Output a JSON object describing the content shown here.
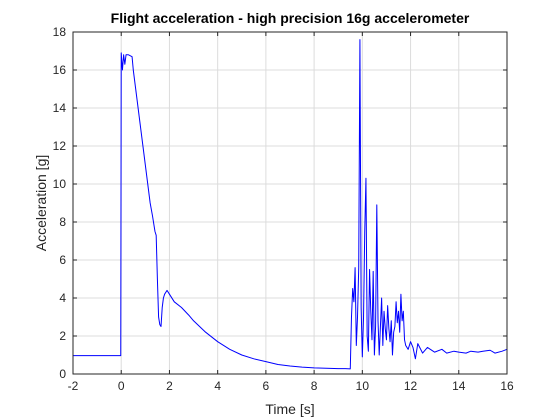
{
  "chart_data": {
    "type": "line",
    "title": "Flight acceleration - high precision 16g accelerometer",
    "xlabel": "Time [s]",
    "ylabel": "Acceleration [g]",
    "xlim": [
      -2,
      16
    ],
    "ylim": [
      0,
      18
    ],
    "xticks": [
      "-2",
      "0",
      "2",
      "4",
      "6",
      "8",
      "10",
      "12",
      "14",
      "16"
    ],
    "yticks": [
      "0",
      "2",
      "4",
      "6",
      "8",
      "10",
      "12",
      "14",
      "16",
      "18"
    ],
    "grid": true,
    "line_color": "#0000ff",
    "series": [
      {
        "x": [
          -2,
          -1,
          -0.5,
          -0.02,
          0,
          0.05,
          0.1,
          0.15,
          0.2,
          0.3,
          0.45,
          0.5,
          0.6,
          0.7,
          0.8,
          0.9,
          1.0,
          1.1,
          1.2,
          1.3,
          1.4,
          1.45,
          1.5,
          1.55,
          1.6,
          1.65,
          1.7,
          1.75,
          1.8,
          1.9,
          2.0,
          2.2,
          2.5,
          2.8,
          3.0,
          3.5,
          4.0,
          4.5,
          5.0,
          5.5,
          6.0,
          6.5,
          7.0,
          7.5,
          8.0,
          8.5,
          9.0,
          9.3,
          9.5,
          9.55,
          9.6,
          9.65,
          9.7,
          9.75,
          9.8,
          9.85,
          9.9,
          9.95,
          10.0,
          10.05,
          10.1,
          10.15,
          10.2,
          10.25,
          10.3,
          10.35,
          10.4,
          10.45,
          10.5,
          10.55,
          10.6,
          10.65,
          10.7,
          10.75,
          10.8,
          10.85,
          10.9,
          10.95,
          11.0,
          11.05,
          11.1,
          11.15,
          11.2,
          11.25,
          11.3,
          11.35,
          11.4,
          11.45,
          11.5,
          11.55,
          11.6,
          11.65,
          11.7,
          11.75,
          11.8,
          11.9,
          12.0,
          12.1,
          12.2,
          12.3,
          12.5,
          12.7,
          13.0,
          13.3,
          13.5,
          13.8,
          14.0,
          14.3,
          14.5,
          14.8,
          15.0,
          15.3,
          15.5,
          15.8,
          16.0
        ],
        "y": [
          0.97,
          0.97,
          0.97,
          0.97,
          16.9,
          16.0,
          16.8,
          16.3,
          16.8,
          16.8,
          16.7,
          16.0,
          15.0,
          14.0,
          13.0,
          12.0,
          11.0,
          10.0,
          9.0,
          8.3,
          7.5,
          7.3,
          5.0,
          3.0,
          2.6,
          2.5,
          3.5,
          4.0,
          4.2,
          4.4,
          4.2,
          3.8,
          3.5,
          3.1,
          2.8,
          2.2,
          1.7,
          1.3,
          1.0,
          0.8,
          0.65,
          0.5,
          0.42,
          0.36,
          0.32,
          0.3,
          0.28,
          0.28,
          0.27,
          3.0,
          4.5,
          3.8,
          5.6,
          1.5,
          3.0,
          5.6,
          17.6,
          3.5,
          0.9,
          3.0,
          7.5,
          10.3,
          2.0,
          1.2,
          5.5,
          3.3,
          1.8,
          5.4,
          1.0,
          2.5,
          8.9,
          2.8,
          1.0,
          2.5,
          4.0,
          1.5,
          3.3,
          2.4,
          1.8,
          3.6,
          2.4,
          1.7,
          2.8,
          1.0,
          2.2,
          2.5,
          3.8,
          2.7,
          3.3,
          2.2,
          4.2,
          2.8,
          3.3,
          1.8,
          1.5,
          1.3,
          1.7,
          1.4,
          0.8,
          1.6,
          1.1,
          1.4,
          1.15,
          1.3,
          1.1,
          1.2,
          1.15,
          1.1,
          1.2,
          1.15,
          1.2,
          1.25,
          1.1,
          1.2,
          1.3
        ]
      }
    ]
  }
}
